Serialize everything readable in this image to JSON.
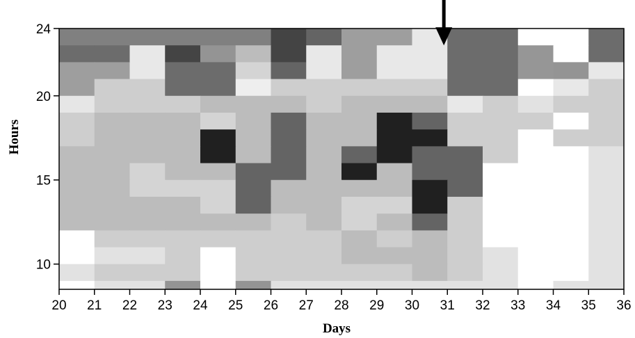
{
  "chart_data": {
    "type": "heatmap",
    "title": "",
    "xlabel": "Days",
    "ylabel": "Hours",
    "xlim": [
      20,
      36
    ],
    "ylim": [
      8.5,
      24
    ],
    "x_ticks": [
      20,
      21,
      22,
      23,
      24,
      25,
      26,
      27,
      28,
      29,
      30,
      31,
      32,
      33,
      34,
      35,
      36
    ],
    "y_ticks": [
      10,
      15,
      20,
      24
    ],
    "grid": false,
    "legend": "none",
    "colorscale": "grayscale, darker = higher value",
    "annotation": {
      "type": "arrow",
      "x": 30.9,
      "y_from": 27.5,
      "y_to": 23
    },
    "row_hours": [
      24,
      23,
      22,
      21,
      20,
      19,
      18,
      17,
      16,
      15,
      14,
      13,
      12,
      11,
      10,
      9
    ],
    "column_days": [
      20,
      21,
      22,
      23,
      24,
      25,
      26,
      27,
      28,
      29,
      30,
      31,
      32,
      33,
      34,
      35
    ],
    "gray_levels": [
      [
        128,
        128,
        128,
        128,
        128,
        128,
        68,
        100,
        158,
        158,
        232,
        108,
        108,
        255,
        255,
        108
      ],
      [
        108,
        108,
        232,
        68,
        148,
        188,
        68,
        232,
        158,
        232,
        232,
        108,
        108,
        150,
        255,
        108
      ],
      [
        158,
        158,
        232,
        108,
        108,
        212,
        100,
        232,
        158,
        232,
        232,
        108,
        108,
        150,
        148,
        232
      ],
      [
        158,
        206,
        206,
        108,
        108,
        238,
        206,
        206,
        206,
        206,
        206,
        108,
        108,
        255,
        232,
        206
      ],
      [
        230,
        206,
        206,
        206,
        188,
        188,
        188,
        206,
        188,
        188,
        188,
        232,
        206,
        226,
        206,
        206
      ],
      [
        206,
        188,
        188,
        188,
        212,
        188,
        100,
        188,
        188,
        32,
        100,
        206,
        206,
        206,
        255,
        206
      ],
      [
        206,
        188,
        188,
        188,
        32,
        188,
        100,
        188,
        188,
        32,
        32,
        206,
        206,
        255,
        206,
        206
      ],
      [
        188,
        188,
        188,
        188,
        32,
        188,
        100,
        188,
        100,
        32,
        100,
        100,
        206,
        255,
        255,
        226
      ],
      [
        188,
        188,
        212,
        188,
        188,
        100,
        100,
        188,
        32,
        188,
        100,
        100,
        255,
        255,
        255,
        226
      ],
      [
        188,
        188,
        212,
        212,
        212,
        100,
        188,
        188,
        188,
        188,
        32,
        100,
        255,
        255,
        255,
        226
      ],
      [
        188,
        188,
        188,
        188,
        212,
        100,
        188,
        188,
        212,
        212,
        32,
        206,
        255,
        255,
        255,
        226
      ],
      [
        188,
        188,
        188,
        188,
        188,
        188,
        206,
        188,
        212,
        188,
        100,
        206,
        255,
        255,
        255,
        226
      ],
      [
        255,
        206,
        206,
        206,
        206,
        206,
        206,
        206,
        188,
        206,
        188,
        206,
        255,
        255,
        255,
        226
      ],
      [
        255,
        226,
        226,
        206,
        255,
        206,
        206,
        206,
        188,
        188,
        188,
        206,
        226,
        255,
        255,
        226
      ],
      [
        226,
        206,
        206,
        206,
        255,
        206,
        206,
        206,
        206,
        206,
        188,
        206,
        226,
        255,
        255,
        226
      ],
      [
        255,
        226,
        226,
        148,
        255,
        148,
        226,
        226,
        226,
        226,
        226,
        226,
        226,
        255,
        226,
        226
      ]
    ]
  }
}
